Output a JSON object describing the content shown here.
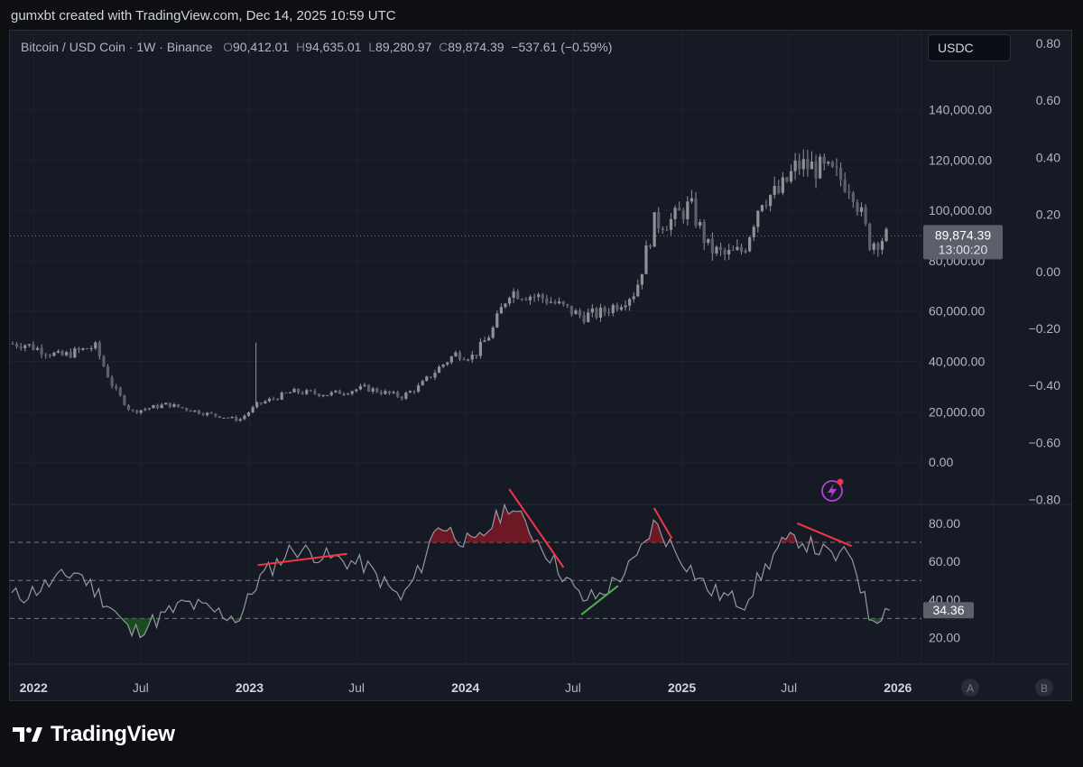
{
  "caption": "gumxbt created with TradingView.com, Dec 14, 2025 10:59 UTC",
  "legend": {
    "symbol": "Bitcoin / USD Coin · 1W · Binance",
    "o_label": "O",
    "o_value": "90,412.01",
    "h_label": "H",
    "h_value": "94,635.01",
    "l_label": "L",
    "l_value": "89,280.97",
    "c_label": "C",
    "c_value": "89,874.39",
    "change": "−537.61 (−0.59%)"
  },
  "currency_badge": "USDC",
  "price_label": {
    "price": "89,874.39",
    "countdown": "13:00:20"
  },
  "rsi_label": "34.36",
  "scale_buttons": {
    "a": "A",
    "b": "B"
  },
  "brand": "TradingView",
  "colors": {
    "background": "#161a25",
    "candle": "#8f9199",
    "rsi_line": "#9598a1",
    "bear_divergence": "#f23645",
    "bull_divergence": "#4caf50",
    "overbought_fill": "#8b1a25",
    "oversold_fill": "#1b5e20",
    "alert_icon": "#b042d4"
  },
  "chart_data": [
    {
      "type": "candlestick",
      "title": "Bitcoin / USD Coin · 1W · Binance",
      "price_axis_ticks": [
        "140,000.00",
        "120,000.00",
        "100,000.00",
        "80,000.00",
        "60,000.00",
        "40,000.00",
        "20,000.00",
        "0.00"
      ],
      "secondary_axis_ticks": [
        "0.80",
        "0.60",
        "0.40",
        "0.20",
        "0.00",
        "−0.20",
        "−0.40",
        "−0.60",
        "−0.80"
      ],
      "time_axis_ticks": [
        "2022",
        "Jul",
        "2023",
        "Jul",
        "2024",
        "Jul",
        "2025",
        "Jul",
        "2026"
      ],
      "ylim": [
        -10000,
        150000
      ],
      "last_price": 89874.39,
      "close_series_approx": {
        "x": [
          "2021-12",
          "2022-02",
          "2022-04",
          "2022-05",
          "2022-06",
          "2022-08",
          "2022-10",
          "2022-12",
          "2023-01",
          "2023-03",
          "2023-05",
          "2023-07",
          "2023-09",
          "2023-10",
          "2023-11",
          "2023-12",
          "2024-01",
          "2024-02",
          "2024-03",
          "2024-05",
          "2024-07",
          "2024-08",
          "2024-09",
          "2024-10",
          "2024-11",
          "2024-12",
          "2025-01",
          "2025-02",
          "2025-03",
          "2025-04",
          "2025-05",
          "2025-06",
          "2025-07",
          "2025-08",
          "2025-09",
          "2025-10",
          "2025-11",
          "2025-12"
        ],
        "y": [
          47000,
          42000,
          46000,
          30000,
          20000,
          23000,
          19500,
          16800,
          23000,
          28000,
          27000,
          29500,
          26000,
          30000,
          37000,
          43000,
          42000,
          52000,
          68000,
          65000,
          58000,
          59000,
          63000,
          68000,
          95000,
          96000,
          102000,
          85000,
          82000,
          84000,
          105000,
          107000,
          118000,
          117000,
          114000,
          110000,
          87000,
          89874
        ]
      }
    },
    {
      "type": "line",
      "title": "RSI",
      "axis_ticks": [
        "80.00",
        "60.00",
        "40.00",
        "20.00"
      ],
      "reference_levels": [
        70,
        50,
        30
      ],
      "ylim": [
        12,
        98
      ],
      "last_value": 34.36,
      "series_approx": {
        "x": [
          "2021-12",
          "2022-03",
          "2022-05",
          "2022-06",
          "2022-09",
          "2022-12",
          "2023-01",
          "2023-03",
          "2023-05",
          "2023-07",
          "2023-09",
          "2023-10",
          "2023-11",
          "2024-01",
          "2024-03",
          "2024-05",
          "2024-07",
          "2024-08",
          "2024-10",
          "2024-11",
          "2024-12",
          "2025-02",
          "2025-04",
          "2025-06",
          "2025-07",
          "2025-09",
          "2025-10",
          "2025-11",
          "2025-12"
        ],
        "y": [
          42,
          55,
          35,
          22,
          38,
          30,
          50,
          67,
          62,
          58,
          40,
          55,
          80,
          68,
          90,
          66,
          40,
          42,
          60,
          80,
          68,
          45,
          38,
          68,
          72,
          62,
          64,
          30,
          34.36
        ]
      },
      "divergences": [
        {
          "kind": "bearish",
          "from": "2023-01",
          "to": "2023-06"
        },
        {
          "kind": "bearish",
          "from": "2024-03",
          "to": "2024-06"
        },
        {
          "kind": "bullish",
          "from": "2024-07",
          "to": "2024-09"
        },
        {
          "kind": "bearish",
          "from": "2024-11",
          "to": "2024-12"
        },
        {
          "kind": "bearish",
          "from": "2025-07",
          "to": "2025-10"
        }
      ]
    }
  ]
}
